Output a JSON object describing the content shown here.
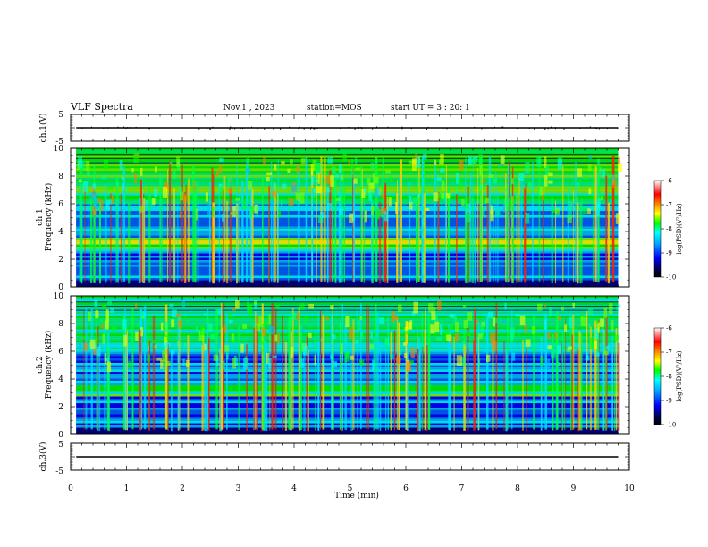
{
  "header": {
    "title": "VLF Spectra",
    "date": "Nov.1 , 2023",
    "station": "station=MOS",
    "start": "start UT = 3 : 20: 1"
  },
  "chart_data": [
    {
      "type": "line",
      "name": "ch1-waveform",
      "ylabel": "ch.1(V)",
      "ylim": [
        -5,
        5
      ],
      "yticks": [
        "5",
        "-5"
      ],
      "xlim": [
        0,
        10
      ],
      "series": [
        {
          "x": [
            0.1,
            9.8
          ],
          "values": [
            0,
            0
          ]
        }
      ]
    },
    {
      "type": "heatmap",
      "name": "ch1-spectrogram",
      "ylabel": "ch.1",
      "ylabel2": "Frequency (kHz)",
      "ylim": [
        0,
        10
      ],
      "yticks": [
        "0",
        "2",
        "4",
        "6",
        "8",
        "10"
      ],
      "xlim": [
        0,
        10
      ],
      "data_xlim": [
        0.1,
        9.8
      ],
      "colorbar": {
        "label": "log(PSD)(V²/Hz)",
        "range": [
          -10,
          -6
        ],
        "ticks": [
          "-6",
          "-7",
          "-8",
          "-9",
          "-10"
        ]
      }
    },
    {
      "type": "heatmap",
      "name": "ch2-spectrogram",
      "ylabel": "ch.2",
      "ylabel2": "Frequency (kHz)",
      "ylim": [
        0,
        10
      ],
      "yticks": [
        "0",
        "2",
        "4",
        "6",
        "8",
        "10"
      ],
      "xlim": [
        0,
        10
      ],
      "data_xlim": [
        0.1,
        9.8
      ],
      "colorbar": {
        "label": "log(PSD)(V²/Hz)",
        "range": [
          -10,
          -6
        ],
        "ticks": [
          "-6",
          "-7",
          "-8",
          "-9",
          "-10"
        ]
      }
    },
    {
      "type": "line",
      "name": "ch3-waveform",
      "ylabel": "ch.3(V)",
      "ylim": [
        -5,
        5
      ],
      "yticks": [
        "5",
        "-5"
      ],
      "xlim": [
        0,
        10
      ],
      "xlabel": "Time (min)",
      "xticks": [
        "0",
        "1",
        "2",
        "3",
        "4",
        "5",
        "6",
        "7",
        "8",
        "9",
        "10"
      ],
      "series": [
        {
          "x": [
            0.1,
            9.8
          ],
          "values": [
            0,
            0
          ]
        }
      ]
    }
  ],
  "colors": {
    "axis": "#000000",
    "background": "#ffffff"
  }
}
